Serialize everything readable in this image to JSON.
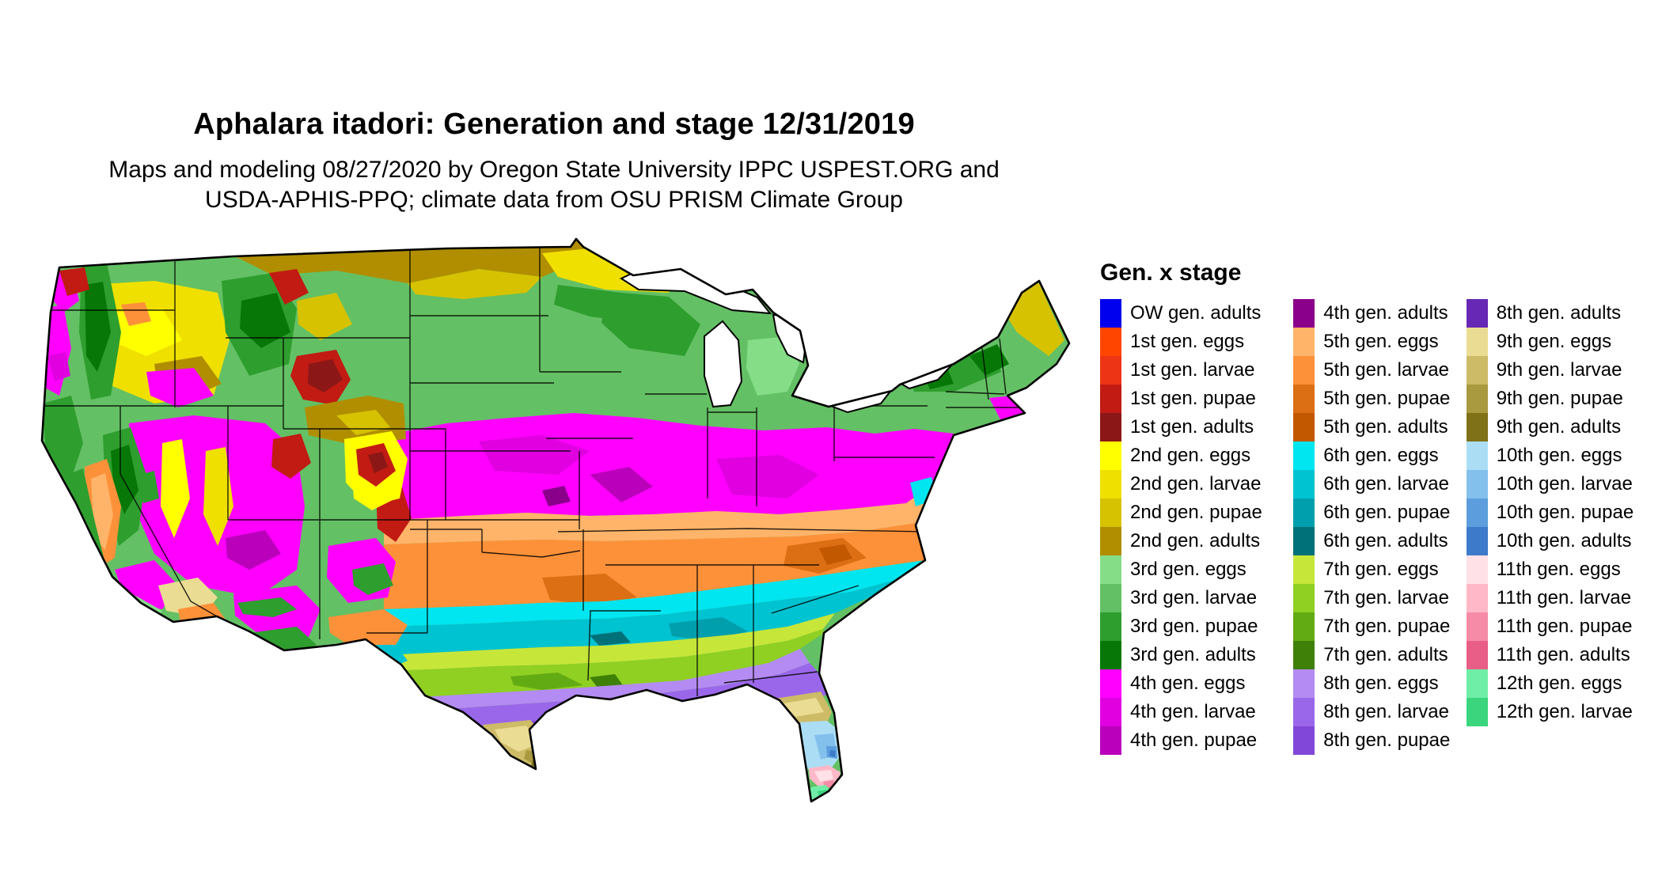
{
  "header": {
    "title": "Aphalara itadori: Generation and stage 12/31/2019",
    "subtitle_line1": "Maps and modeling 08/27/2020 by Oregon State University IPPC USPEST.ORG and",
    "subtitle_line2": "USDA-APHIS-PPQ; climate data from OSU PRISM Climate Group"
  },
  "legend": {
    "title": "Gen. x stage",
    "columns": [
      {
        "items": [
          {
            "label": "OW gen. adults",
            "color": "#0000EE"
          },
          {
            "label": "1st gen. eggs",
            "color": "#FF4500"
          },
          {
            "label": "1st gen. larvae",
            "color": "#ED3415"
          },
          {
            "label": "1st gen. pupae",
            "color": "#C11B14"
          },
          {
            "label": "1st gen. adults",
            "color": "#8C1717"
          },
          {
            "label": "2nd gen. eggs",
            "color": "#FFFF00"
          },
          {
            "label": "2nd gen. larvae",
            "color": "#F0E000"
          },
          {
            "label": "2nd gen. pupae",
            "color": "#D6C200"
          },
          {
            "label": "2nd gen. adults",
            "color": "#B08E00"
          },
          {
            "label": "3rd gen. eggs",
            "color": "#85DE87"
          },
          {
            "label": "3rd gen. larvae",
            "color": "#64C064"
          },
          {
            "label": "3rd gen. pupae",
            "color": "#2E9E2E"
          },
          {
            "label": "3rd gen. adults",
            "color": "#077807"
          },
          {
            "label": "4th gen. eggs",
            "color": "#FF00FF"
          },
          {
            "label": "4th gen. larvae",
            "color": "#E000E0"
          },
          {
            "label": "4th gen. pupae",
            "color": "#BB00BB"
          }
        ]
      },
      {
        "items": [
          {
            "label": "4th gen. adults",
            "color": "#8B008B"
          },
          {
            "label": "5th gen. eggs",
            "color": "#FFB469"
          },
          {
            "label": "5th gen. larvae",
            "color": "#FD9139"
          },
          {
            "label": "5th gen. pupae",
            "color": "#DC6E14"
          },
          {
            "label": "5th gen. adults",
            "color": "#C25800"
          },
          {
            "label": "6th gen. eggs",
            "color": "#00E6F0"
          },
          {
            "label": "6th gen. larvae",
            "color": "#00C3D1"
          },
          {
            "label": "6th gen. pupae",
            "color": "#009FAD"
          },
          {
            "label": "6th gen. adults",
            "color": "#007178"
          },
          {
            "label": "7th gen. eggs",
            "color": "#C7E63A"
          },
          {
            "label": "7th gen. larvae",
            "color": "#8FD023"
          },
          {
            "label": "7th gen. pupae",
            "color": "#63AB12"
          },
          {
            "label": "7th gen. adults",
            "color": "#3F8008"
          },
          {
            "label": "8th gen. eggs",
            "color": "#B48BF2"
          },
          {
            "label": "8th gen. larvae",
            "color": "#9B67EA"
          },
          {
            "label": "8th gen. pupae",
            "color": "#8147D8"
          }
        ]
      },
      {
        "items": [
          {
            "label": "8th gen. adults",
            "color": "#6728B5"
          },
          {
            "label": "9th gen. eggs",
            "color": "#EADC92"
          },
          {
            "label": "9th gen. larvae",
            "color": "#CDBB67"
          },
          {
            "label": "9th gen. pupae",
            "color": "#A9993F"
          },
          {
            "label": "9th gen. adults",
            "color": "#7F7118"
          },
          {
            "label": "10th gen. eggs",
            "color": "#ABDEF5"
          },
          {
            "label": "10th gen. larvae",
            "color": "#84C0EC"
          },
          {
            "label": "10th gen. pupae",
            "color": "#5C9EDD"
          },
          {
            "label": "10th gen. adults",
            "color": "#3E7ACA"
          },
          {
            "label": "11th gen. eggs",
            "color": "#FFE1E7"
          },
          {
            "label": "11th gen. larvae",
            "color": "#FFB8C8"
          },
          {
            "label": "11th gen. pupae",
            "color": "#F68BA7"
          },
          {
            "label": "11th gen. adults",
            "color": "#E85E86"
          },
          {
            "label": "12th gen. eggs",
            "color": "#6FEEA7"
          },
          {
            "label": "12th gen. larvae",
            "color": "#3BD57E"
          }
        ]
      }
    ]
  }
}
